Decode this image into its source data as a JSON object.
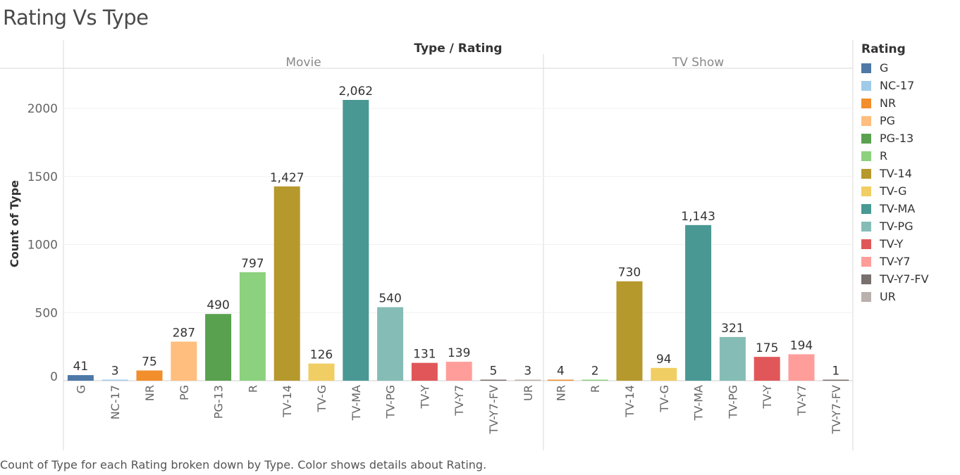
{
  "title": "Rating Vs Type",
  "caption": "Count of Type for each Rating broken down by Type.  Color shows details about Rating.",
  "chart_data": {
    "type": "bar",
    "title": "Rating Vs Type",
    "header": "Type / Rating",
    "ylabel": "Count of Type",
    "ylim": [
      0,
      2200
    ],
    "yticks": [
      0,
      500,
      1000,
      1500,
      2000
    ],
    "grid": true,
    "legend_title": "Rating",
    "legend_position": "right",
    "colors": {
      "G": "#4e79a7",
      "NC-17": "#a0cbe8",
      "NR": "#f28e2b",
      "PG": "#ffbe7d",
      "PG-13": "#59a14f",
      "R": "#8cd17d",
      "TV-14": "#b6992d",
      "TV-G": "#f1ce63",
      "TV-MA": "#499894",
      "TV-PG": "#86bcb6",
      "TV-Y": "#e15759",
      "TV-Y7": "#ff9d9a",
      "TV-Y7-FV": "#79706e",
      "UR": "#bab0ac"
    },
    "panels": [
      {
        "name": "Movie",
        "categories": [
          "G",
          "NC-17",
          "NR",
          "PG",
          "PG-13",
          "R",
          "TV-14",
          "TV-G",
          "TV-MA",
          "TV-PG",
          "TV-Y",
          "TV-Y7",
          "TV-Y7-FV",
          "UR"
        ],
        "values": [
          41,
          3,
          75,
          287,
          490,
          797,
          1427,
          126,
          2062,
          540,
          131,
          139,
          5,
          3
        ],
        "labels": [
          "41",
          "3",
          "75",
          "287",
          "490",
          "797",
          "1,427",
          "126",
          "2,062",
          "540",
          "131",
          "139",
          "5",
          "3"
        ]
      },
      {
        "name": "TV Show",
        "categories": [
          "NR",
          "R",
          "TV-14",
          "TV-G",
          "TV-MA",
          "TV-PG",
          "TV-Y",
          "TV-Y7",
          "TV-Y7-FV"
        ],
        "values": [
          4,
          2,
          730,
          94,
          1143,
          321,
          175,
          194,
          1
        ],
        "labels": [
          "4",
          "2",
          "730",
          "94",
          "1,143",
          "321",
          "175",
          "194",
          "1"
        ]
      }
    ]
  }
}
